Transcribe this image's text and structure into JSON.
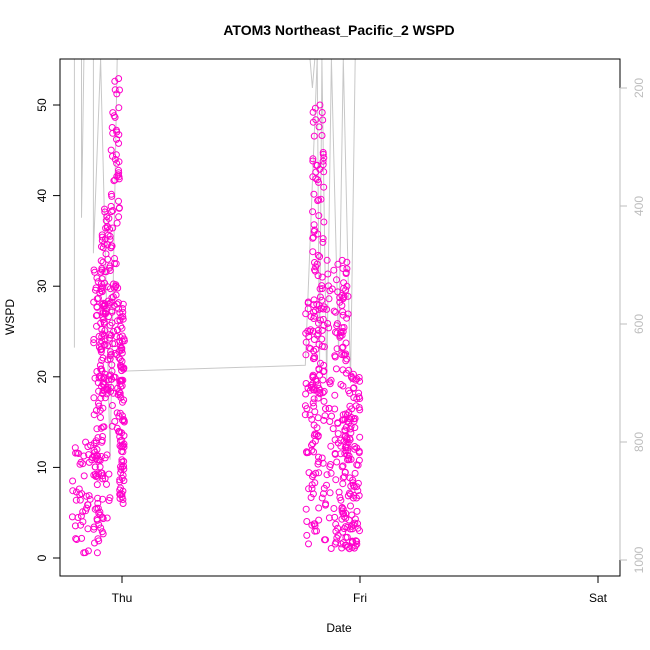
{
  "chart_data": {
    "type": "scatter",
    "title": "ATOM3 Northeast_Pacific_2 WSPD",
    "xlabel": "Date",
    "ylabel": "WSPD",
    "x_ticks": [
      "Thu",
      "Fri",
      "Sat"
    ],
    "ylim": [
      0,
      55
    ],
    "y_ticks": [
      0,
      10,
      20,
      30,
      40,
      50
    ],
    "y2_ticks": [
      200,
      400,
      600,
      800,
      1000
    ],
    "y2_reversed": true,
    "grid": false,
    "legend": "none",
    "series": [
      {
        "marker": "open-circle",
        "color": "#ff00cc",
        "clusters": [
          {
            "x": [
              -0.21,
              -0.05
            ],
            "y_range": [
              0.5,
              13
            ]
          },
          {
            "x": [
              -0.12,
              -0.07
            ],
            "y_range": [
              8,
              32
            ]
          },
          {
            "x": [
              -0.09,
              -0.04
            ],
            "y_range": [
              18,
              39
            ]
          },
          {
            "x": [
              -0.05,
              -0.01
            ],
            "y_range": [
              13.5,
              53
            ]
          },
          {
            "x": [
              -0.01,
              0.01
            ],
            "y_range": [
              6,
              29
            ]
          },
          {
            "x": [
              0.77,
              0.83
            ],
            "y_range": [
              1.5,
              29
            ]
          },
          {
            "x": [
              0.8,
              0.85
            ],
            "y_range": [
              18,
              51
            ]
          },
          {
            "x": [
              0.84,
              0.92
            ],
            "y_range": [
              1,
              33
            ]
          },
          {
            "x": [
              0.92,
              0.95
            ],
            "y_range": [
              1,
              33
            ]
          },
          {
            "x": [
              0.95,
              1.0
            ],
            "y_range": [
              1,
              21
            ]
          }
        ]
      },
      {
        "marker": "line",
        "color": "#c8c8c8",
        "axis": "right",
        "segments": [
          [
            [
              -0.2,
              640
            ],
            [
              -0.2,
              55
            ],
            [
              -0.17,
              55
            ],
            [
              -0.17,
              420
            ],
            [
              -0.16,
              55
            ],
            [
              -0.12,
              55
            ],
            [
              -0.12,
              480
            ],
            [
              -0.09,
              55
            ],
            [
              -0.07,
              480
            ],
            [
              -0.05,
              830
            ],
            [
              -0.02,
              55
            ],
            [
              -0.01,
              55
            ]
          ],
          [
            [
              -0.14,
              55
            ],
            [
              0.79,
              55
            ],
            [
              0.8,
              200
            ],
            [
              0.81,
              55
            ]
          ],
          [
            [
              0.0,
              680
            ],
            [
              0.77,
              670
            ],
            [
              0.82,
              55
            ]
          ],
          [
            [
              0.82,
              55
            ],
            [
              0.83,
              680
            ],
            [
              0.84,
              55
            ],
            [
              0.86,
              700
            ],
            [
              0.88,
              55
            ],
            [
              0.91,
              650
            ],
            [
              0.93,
              55
            ],
            [
              0.96,
              700
            ],
            [
              0.98,
              55
            ],
            [
              1.0,
              55
            ]
          ]
        ]
      }
    ]
  }
}
